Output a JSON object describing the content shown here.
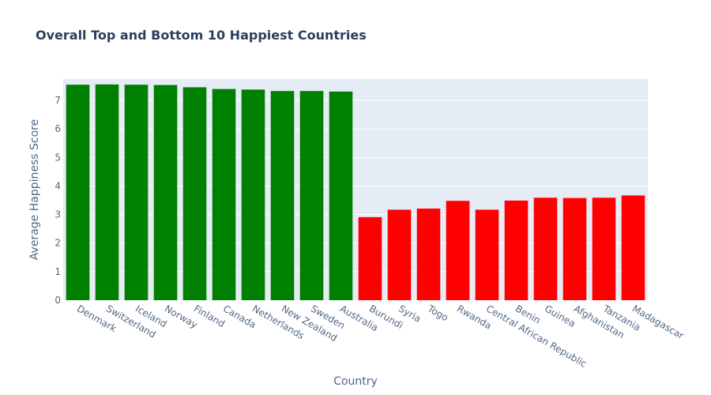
{
  "chart_data": {
    "type": "bar",
    "title": "Overall Top and Bottom 10 Happiest Countries",
    "xlabel": "Country",
    "ylabel": "Average Happiness Score",
    "ylim": [
      0,
      7.75
    ],
    "yticks": [
      0,
      1,
      2,
      3,
      4,
      5,
      6,
      7
    ],
    "grid": true,
    "legend": "none",
    "categories": [
      "Denmark",
      "Switzerland",
      "Iceland",
      "Norway",
      "Finland",
      "Canada",
      "Netherlands",
      "New Zealand",
      "Sweden",
      "Australia",
      "Burundi",
      "Syria",
      "Togo",
      "Rwanda",
      "Central African Republic",
      "Benin",
      "Guinea",
      "Afghanistan",
      "Tanzania",
      "Madagascar"
    ],
    "values": [
      7.55,
      7.56,
      7.55,
      7.54,
      7.46,
      7.4,
      7.38,
      7.33,
      7.33,
      7.31,
      2.91,
      3.17,
      3.21,
      3.48,
      3.17,
      3.49,
      3.59,
      3.58,
      3.59,
      3.67
    ],
    "colors": [
      "#008000",
      "#008000",
      "#008000",
      "#008000",
      "#008000",
      "#008000",
      "#008000",
      "#008000",
      "#008000",
      "#008000",
      "#ff0000",
      "#ff0000",
      "#ff0000",
      "#ff0000",
      "#ff0000",
      "#ff0000",
      "#ff0000",
      "#ff0000",
      "#ff0000",
      "#ff0000"
    ],
    "plot_background": "#e5ecf6"
  }
}
